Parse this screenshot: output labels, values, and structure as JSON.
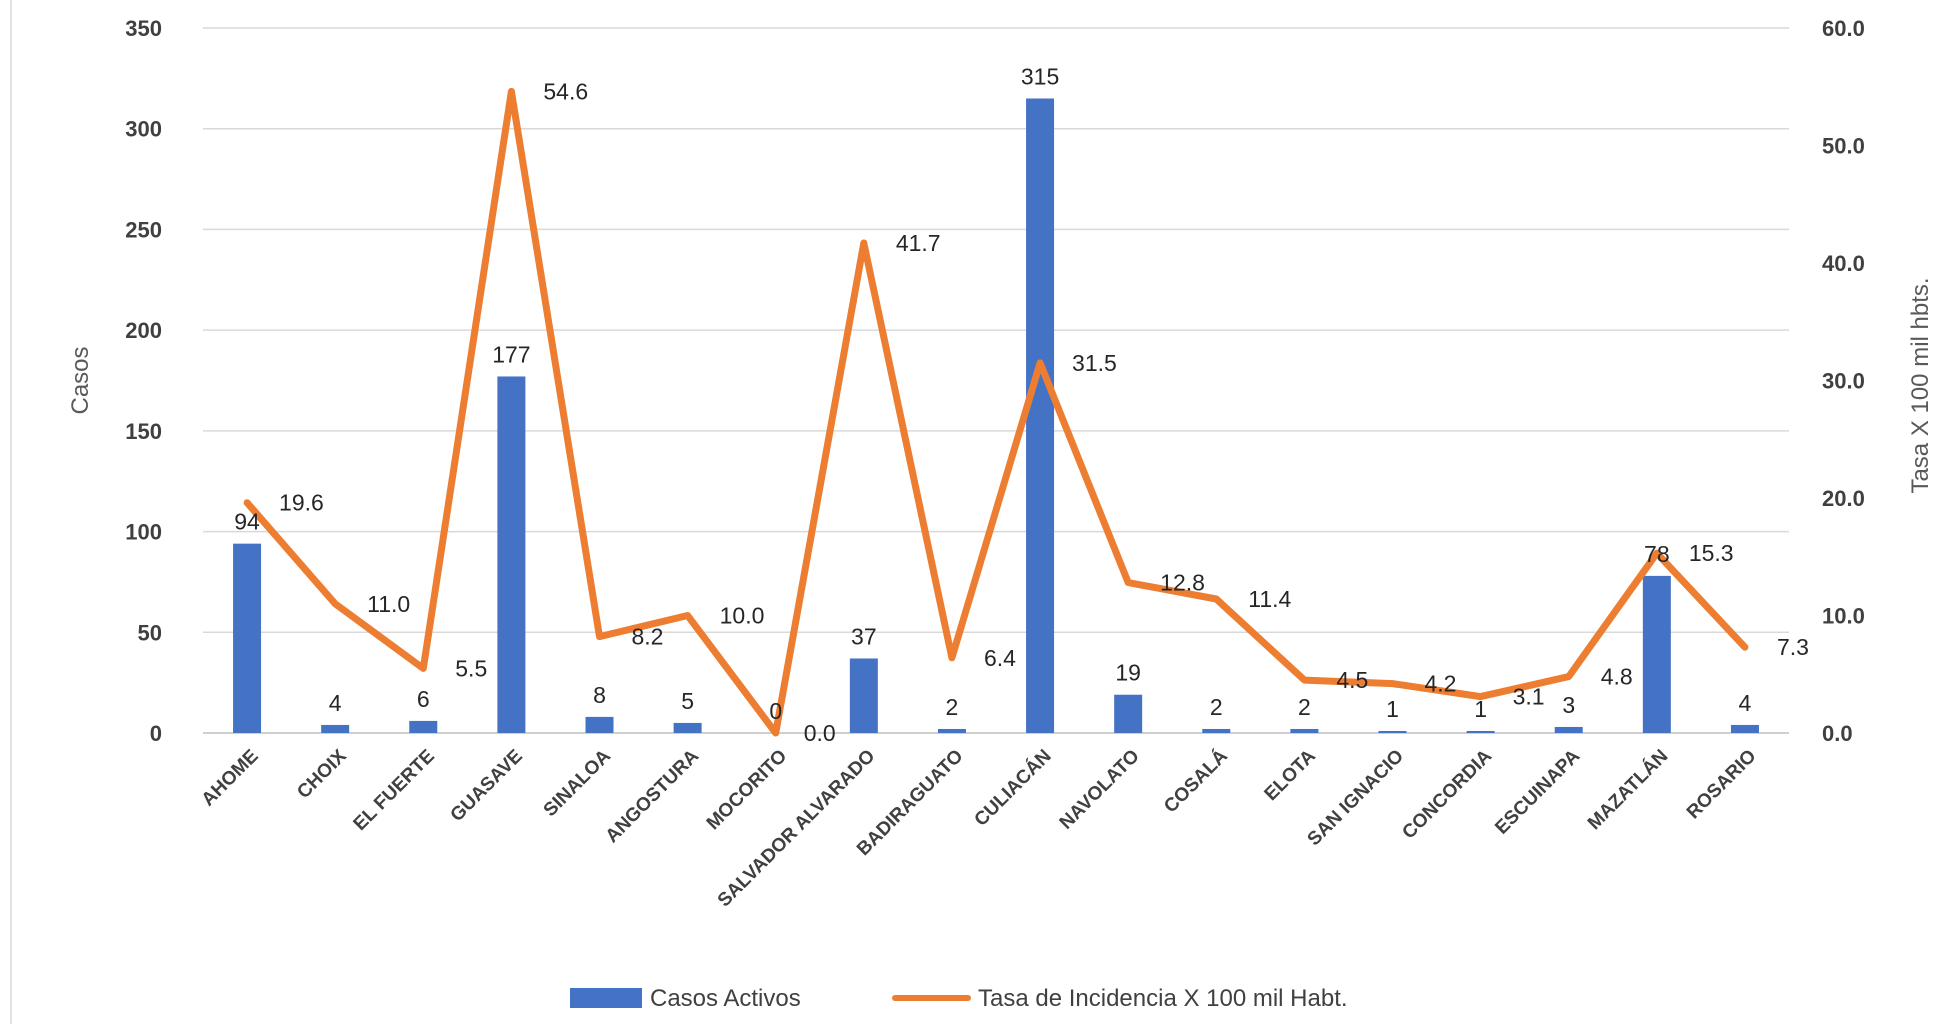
{
  "chart_data": {
    "type": "bar",
    "categories": [
      "AHOME",
      "CHOIX",
      "EL FUERTE",
      "GUASAVE",
      "SINALOA",
      "ANGOSTURA",
      "MOCORITO",
      "SALVADOR ALVARADO",
      "BADIRAGUATO",
      "CULIACÁN",
      "NAVOLATO",
      "COSALÁ",
      "ELOTA",
      "SAN IGNACIO",
      "CONCORDIA",
      "ESCUINAPA",
      "MAZATLÁN",
      "ROSARIO"
    ],
    "series": [
      {
        "name": "Casos Activos",
        "type": "bar",
        "axis": "left",
        "color": "#4472C4",
        "values": [
          94,
          4,
          6,
          177,
          8,
          5,
          0,
          37,
          2,
          315,
          19,
          2,
          2,
          1,
          1,
          3,
          78,
          4
        ],
        "labels": [
          "94",
          "4",
          "6",
          "177",
          "8",
          "5",
          "0",
          "37",
          "2",
          "315",
          "19",
          "2",
          "2",
          "1",
          "1",
          "3",
          "78",
          "4"
        ]
      },
      {
        "name": "Tasa de Incidencia X 100 mil Habt.",
        "type": "line",
        "axis": "right",
        "color": "#ED7D31",
        "values": [
          19.6,
          11.0,
          5.5,
          54.6,
          8.2,
          10.0,
          0.0,
          41.7,
          6.4,
          31.5,
          12.8,
          11.4,
          4.5,
          4.2,
          3.1,
          4.8,
          15.3,
          7.3
        ],
        "labels": [
          "19.6",
          "11.0",
          "5.5",
          "54.6",
          "8.2",
          "10.0",
          "0.0",
          "41.7",
          "6.4",
          "31.5",
          "12.8",
          "11.4",
          "4.5",
          "4.2",
          "3.1",
          "4.8",
          "15.3",
          "7.3"
        ]
      }
    ],
    "ylabel": "Casos",
    "y2label": "Tasa X 100 mil hbts.",
    "ylim": [
      0,
      350
    ],
    "y2lim": [
      0,
      60
    ],
    "yticks": [
      "0",
      "50",
      "100",
      "150",
      "200",
      "250",
      "300",
      "350"
    ],
    "y2ticks": [
      "0.0",
      "10.0",
      "20.0",
      "30.0",
      "40.0",
      "50.0",
      "60.0"
    ],
    "grid": true,
    "legend_position": "bottom"
  }
}
